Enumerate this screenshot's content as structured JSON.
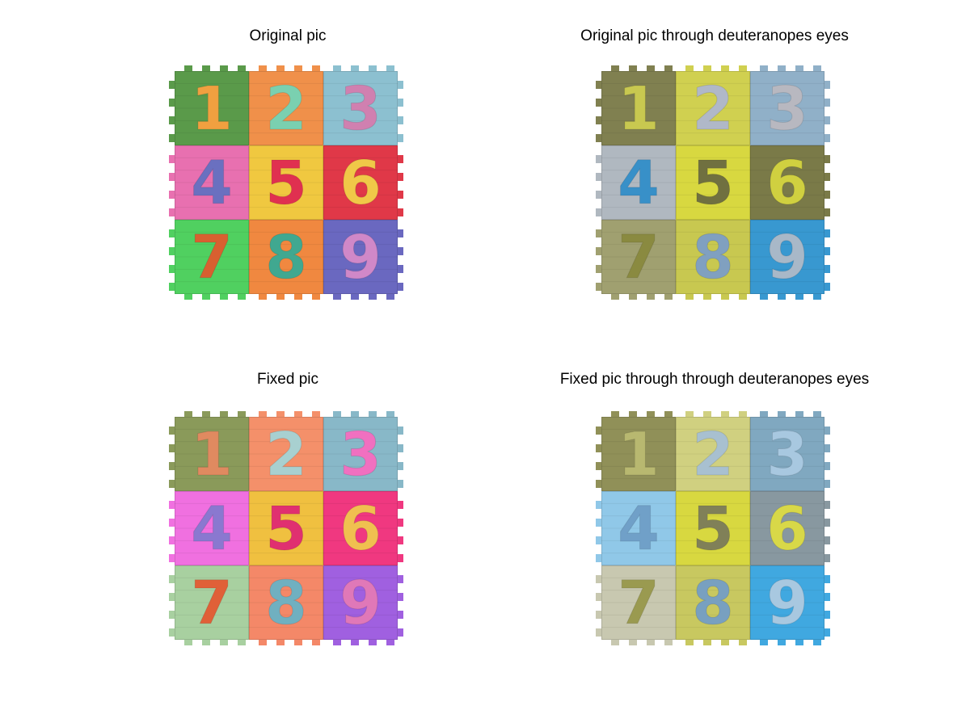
{
  "panels": [
    {
      "title": "Original pic",
      "tiles": [
        {
          "label": "1",
          "bg": "#5a9a4a",
          "fg": "#f0a040"
        },
        {
          "label": "2",
          "bg": "#f0904a",
          "fg": "#7ad0b0"
        },
        {
          "label": "3",
          "bg": "#8cc0d0",
          "fg": "#d080b0"
        },
        {
          "label": "4",
          "bg": "#e870b0",
          "fg": "#6a70c0"
        },
        {
          "label": "5",
          "bg": "#f0c840",
          "fg": "#e03050"
        },
        {
          "label": "6",
          "bg": "#e03848",
          "fg": "#f0c848"
        },
        {
          "label": "7",
          "bg": "#50d060",
          "fg": "#d86030"
        },
        {
          "label": "8",
          "bg": "#f08840",
          "fg": "#40a890"
        },
        {
          "label": "9",
          "bg": "#6a68c0",
          "fg": "#d088c8"
        }
      ]
    },
    {
      "title": "Original pic through deuteranopes eyes",
      "tiles": [
        {
          "label": "1",
          "bg": "#808050",
          "fg": "#c8c850"
        },
        {
          "label": "2",
          "bg": "#d0d050",
          "fg": "#b0b8c8"
        },
        {
          "label": "3",
          "bg": "#90b0c8",
          "fg": "#b8b8c0"
        },
        {
          "label": "4",
          "bg": "#b0b8c0",
          "fg": "#3890c8"
        },
        {
          "label": "5",
          "bg": "#d8d840",
          "fg": "#707040"
        },
        {
          "label": "6",
          "bg": "#7a7a48",
          "fg": "#d0d040"
        },
        {
          "label": "7",
          "bg": "#a0a070",
          "fg": "#8a8a40"
        },
        {
          "label": "8",
          "bg": "#c8c850",
          "fg": "#80a0c0"
        },
        {
          "label": "9",
          "bg": "#3898d0",
          "fg": "#a8b8c8"
        }
      ]
    },
    {
      "title": "Fixed pic",
      "tiles": [
        {
          "label": "1",
          "bg": "#8a9a5a",
          "fg": "#e08a60"
        },
        {
          "label": "2",
          "bg": "#f4906a",
          "fg": "#a8d0d0"
        },
        {
          "label": "3",
          "bg": "#88b8c8",
          "fg": "#f070c0"
        },
        {
          "label": "4",
          "bg": "#f070e0",
          "fg": "#8a78d0"
        },
        {
          "label": "5",
          "bg": "#f0c040",
          "fg": "#e03070"
        },
        {
          "label": "6",
          "bg": "#f03880",
          "fg": "#f0c050"
        },
        {
          "label": "7",
          "bg": "#a8d0a0",
          "fg": "#e06038"
        },
        {
          "label": "8",
          "bg": "#f48868",
          "fg": "#70b0c0"
        },
        {
          "label": "9",
          "bg": "#a060e0",
          "fg": "#e078b8"
        }
      ]
    },
    {
      "title": "Fixed pic through through deuteranopes eyes",
      "tiles": [
        {
          "label": "1",
          "bg": "#909058",
          "fg": "#b8b870"
        },
        {
          "label": "2",
          "bg": "#d0d080",
          "fg": "#a8c0d0"
        },
        {
          "label": "3",
          "bg": "#80a8c0",
          "fg": "#a8c8e0"
        },
        {
          "label": "4",
          "bg": "#90c8e8",
          "fg": "#70a0c8"
        },
        {
          "label": "5",
          "bg": "#d8d840",
          "fg": "#808058"
        },
        {
          "label": "6",
          "bg": "#8898a0",
          "fg": "#d8d848"
        },
        {
          "label": "7",
          "bg": "#c8c8b0",
          "fg": "#9a9a50"
        },
        {
          "label": "8",
          "bg": "#c8c860",
          "fg": "#78a0c0"
        },
        {
          "label": "9",
          "bg": "#40a8e0",
          "fg": "#a8c8e0"
        }
      ]
    }
  ]
}
